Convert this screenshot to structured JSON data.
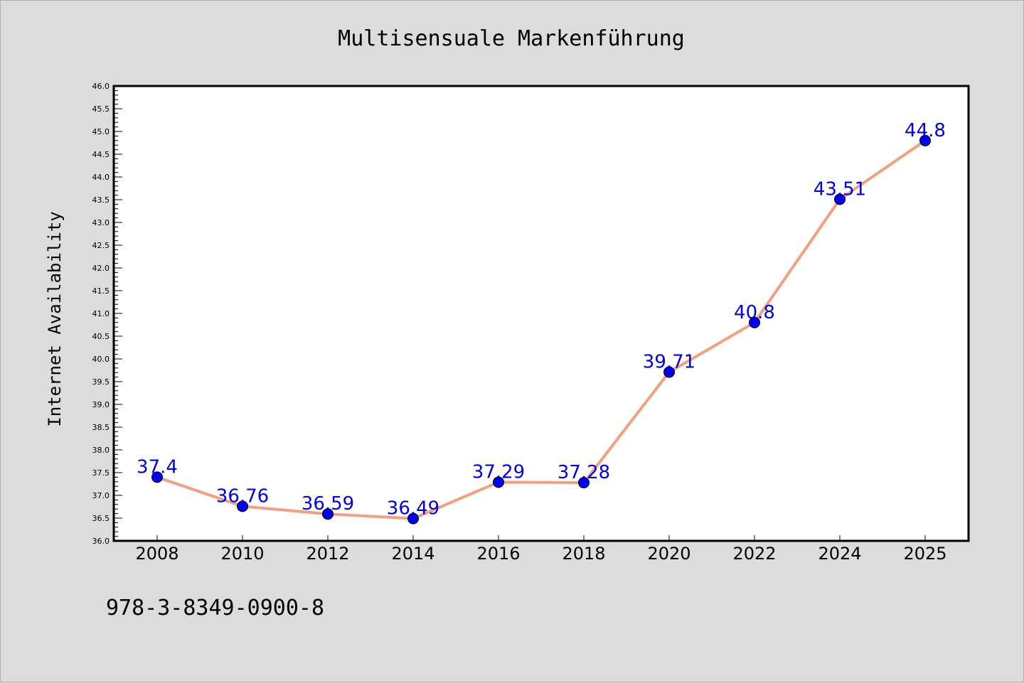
{
  "chart_data": {
    "type": "line",
    "title": "Multisensuale Markenführung",
    "xlabel": "",
    "ylabel": "Internet Availability",
    "categories": [
      "2008",
      "2010",
      "2012",
      "2014",
      "2016",
      "2018",
      "2020",
      "2022",
      "2024",
      "2025"
    ],
    "values": [
      37.4,
      36.76,
      36.59,
      36.49,
      37.29,
      37.28,
      39.71,
      40.8,
      43.51,
      44.8
    ],
    "data_labels": [
      "37.4",
      "36.76",
      "36.59",
      "36.49",
      "37.29",
      "37.28",
      "39.71",
      "40.8",
      "43.51",
      "44.8"
    ],
    "ylim": [
      36.0,
      46.0
    ],
    "y_major_step": 0.5,
    "y_tick_labels": [
      "36.0",
      "36.5",
      "37.0",
      "37.5",
      "38.0",
      "38.5",
      "39.0",
      "39.5",
      "40.0",
      "40.5",
      "41.0",
      "41.5",
      "42.0",
      "42.5",
      "43.0",
      "43.5",
      "44.0",
      "44.5",
      "45.0",
      "45.5",
      "46.0"
    ],
    "grid": false,
    "line_color": "#f4a07e",
    "marker_color": "#0000ee",
    "label_color": "#0000ee"
  },
  "footer": {
    "isbn": "978-3-8349-0900-8"
  }
}
